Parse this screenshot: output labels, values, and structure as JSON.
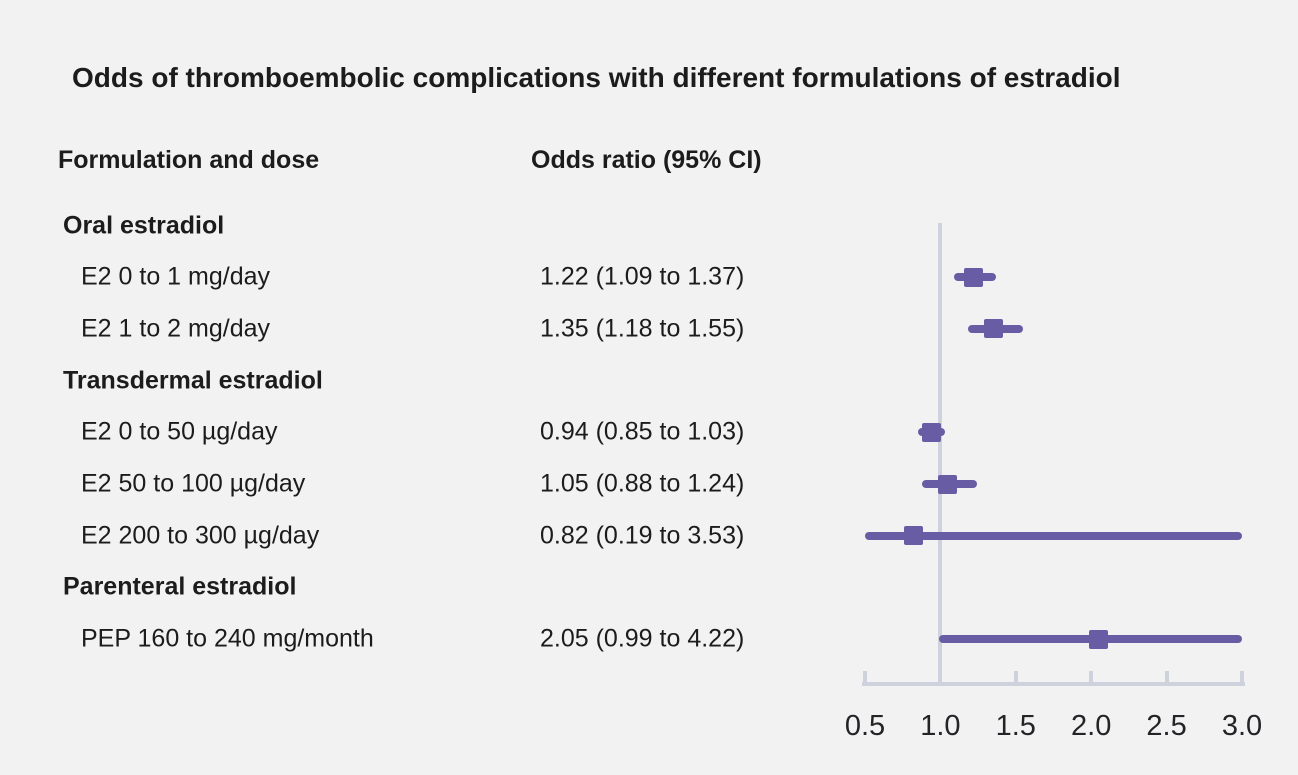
{
  "figure": {
    "background": "#f2f2f2"
  },
  "columns": {
    "formulation": "Formulation and dose",
    "odds_ratio": "Odds ratio (95% CI)"
  },
  "chart_data": {
    "type": "scatter",
    "variant": "forest-plot",
    "title": "Odds of thromboembolic complications with different formulations of estradiol",
    "xlabel": "",
    "ylabel": "",
    "xlim": [
      0.5,
      3.0
    ],
    "x_ticks": [
      0.5,
      1.0,
      1.5,
      2.0,
      2.5,
      3.0
    ],
    "tick_labels": [
      "0.5",
      "1.0",
      "1.5",
      "2.0",
      "2.5",
      "3.0"
    ],
    "reference_line": 1.0,
    "grid": false,
    "legend": "none",
    "colors": {
      "marker": "#685ca4",
      "axis": "#cdd2dc",
      "text": "#1c1c1c",
      "background": "#f2f2f2"
    },
    "rows": [
      {
        "type": "group",
        "label": "Oral estradiol"
      },
      {
        "type": "item",
        "label": "E2 0 to 1 mg/day",
        "or_text": "1.22 (1.09 to 1.37)",
        "estimate": 1.22,
        "ci_low": 1.09,
        "ci_high": 1.37
      },
      {
        "type": "item",
        "label": "E2 1 to 2 mg/day",
        "or_text": "1.35 (1.18 to 1.55)",
        "estimate": 1.35,
        "ci_low": 1.18,
        "ci_high": 1.55
      },
      {
        "type": "group",
        "label": "Transdermal estradiol"
      },
      {
        "type": "item",
        "label": "E2 0 to 50 µg/day",
        "or_text": "0.94 (0.85 to 1.03)",
        "estimate": 0.94,
        "ci_low": 0.85,
        "ci_high": 1.03
      },
      {
        "type": "item",
        "label": "E2 50 to 100 µg/day",
        "or_text": "1.05 (0.88 to 1.24)",
        "estimate": 1.05,
        "ci_low": 0.88,
        "ci_high": 1.24
      },
      {
        "type": "item",
        "label": "E2 200 to 300 µg/day",
        "or_text": "0.82 (0.19 to 3.53)",
        "estimate": 0.82,
        "ci_low": 0.19,
        "ci_high": 3.53
      },
      {
        "type": "group",
        "label": "Parenteral estradiol"
      },
      {
        "type": "item",
        "label": "PEP 160 to 240 mg/month",
        "or_text": "2.05 (0.99 to 4.22)",
        "estimate": 2.05,
        "ci_low": 0.99,
        "ci_high": 4.22
      }
    ]
  }
}
